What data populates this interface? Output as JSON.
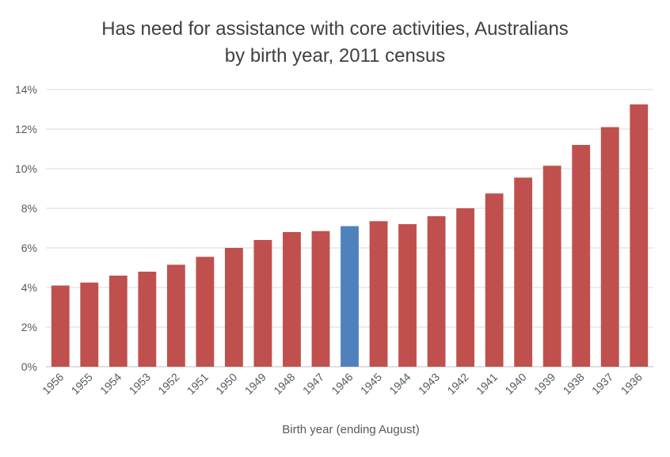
{
  "chart_data": {
    "type": "bar",
    "title_line1": "Has need for assistance with core activities, Australians",
    "title_line2": "by birth year, 2011 census",
    "xlabel": "Birth year (ending August)",
    "ylabel": "",
    "ylim": [
      0,
      14
    ],
    "y_ticks": [
      "0%",
      "2%",
      "4%",
      "6%",
      "8%",
      "10%",
      "12%",
      "14%"
    ],
    "grid": true,
    "categories": [
      "1956",
      "1955",
      "1954",
      "1953",
      "1952",
      "1951",
      "1950",
      "1949",
      "1948",
      "1947",
      "1946",
      "1945",
      "1944",
      "1943",
      "1942",
      "1941",
      "1940",
      "1939",
      "1938",
      "1937",
      "1936"
    ],
    "values": [
      4.1,
      4.25,
      4.6,
      4.8,
      5.15,
      5.55,
      6.0,
      6.4,
      6.8,
      6.85,
      7.1,
      7.35,
      7.2,
      7.6,
      8.0,
      8.75,
      9.55,
      10.15,
      11.2,
      12.1,
      13.25
    ],
    "highlight_category": "1946",
    "colors": {
      "bar": "#c0504d",
      "highlight": "#4f81bd",
      "grid": "#d9d9d9",
      "axis": "#bfbfbf"
    }
  }
}
